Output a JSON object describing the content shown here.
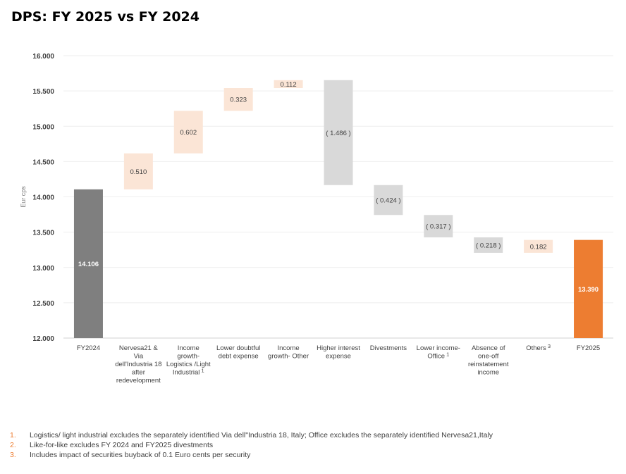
{
  "title": "DPS: FY 2025 vs FY 2024",
  "chart_data": {
    "type": "waterfall",
    "title": "DPS: FY 2025 vs FY 2024",
    "ylabel": "Eur cps",
    "xlabel": "",
    "ylim": [
      12.0,
      16.0
    ],
    "yticks": [
      "12.000",
      "12.500",
      "13.000",
      "13.500",
      "14.000",
      "14.500",
      "15.000",
      "15.500",
      "16.000"
    ],
    "grid": true,
    "colors": {
      "total_start": "#7f7f7f",
      "increase": "#fbe5d6",
      "decrease": "#d9d9d9",
      "total_end": "#ed7d31"
    },
    "categories": [
      {
        "label": [
          "FY2024"
        ],
        "sup": ""
      },
      {
        "label": [
          "Nervesa21 &",
          "Via",
          "dell'Industria 18",
          "after",
          "redevelopment"
        ],
        "sup": ""
      },
      {
        "label": [
          "Income",
          "growth-",
          "Logistics /Light",
          "Industrial"
        ],
        "sup": "1"
      },
      {
        "label": [
          "Lower doubtful",
          "debt expense"
        ],
        "sup": ""
      },
      {
        "label": [
          "Income",
          "growth- Other"
        ],
        "sup": ""
      },
      {
        "label": [
          "Higher interest",
          "expense"
        ],
        "sup": ""
      },
      {
        "label": [
          "Divestments"
        ],
        "sup": ""
      },
      {
        "label": [
          "Lower income-",
          "Office"
        ],
        "sup": "1"
      },
      {
        "label": [
          "Absence of",
          "one-off",
          "reinstatement",
          "income"
        ],
        "sup": ""
      },
      {
        "label": [
          "Others"
        ],
        "sup": "3"
      },
      {
        "label": [
          "FY2025"
        ],
        "sup": ""
      }
    ],
    "values": [
      14.106,
      0.51,
      0.602,
      0.323,
      0.112,
      -1.486,
      -0.424,
      -0.317,
      -0.218,
      0.182,
      13.39
    ],
    "kinds": [
      "total",
      "increase",
      "increase",
      "increase",
      "increase",
      "decrease",
      "decrease",
      "decrease",
      "decrease",
      "increase",
      "total_end"
    ],
    "data_labels": [
      "14.106",
      "0.510",
      "0.602",
      "0.323",
      "0.112",
      "( 1.486 )",
      "( 0.424 )",
      "( 0.317 )",
      "( 0.218 )",
      "0.182",
      "13.390"
    ]
  },
  "footnotes": [
    {
      "n": "1.",
      "text": "Logistics/ light industrial excludes the separately identified Via dell\"Industria 18, Italy; Office excludes the separately identified Nervesa21,Italy"
    },
    {
      "n": "2.",
      "text": "Like-for-like excludes FY 2024 and FY2025 divestments"
    },
    {
      "n": "3.",
      "text": "Includes impact of securities buyback of 0.1 Euro cents per security"
    }
  ]
}
